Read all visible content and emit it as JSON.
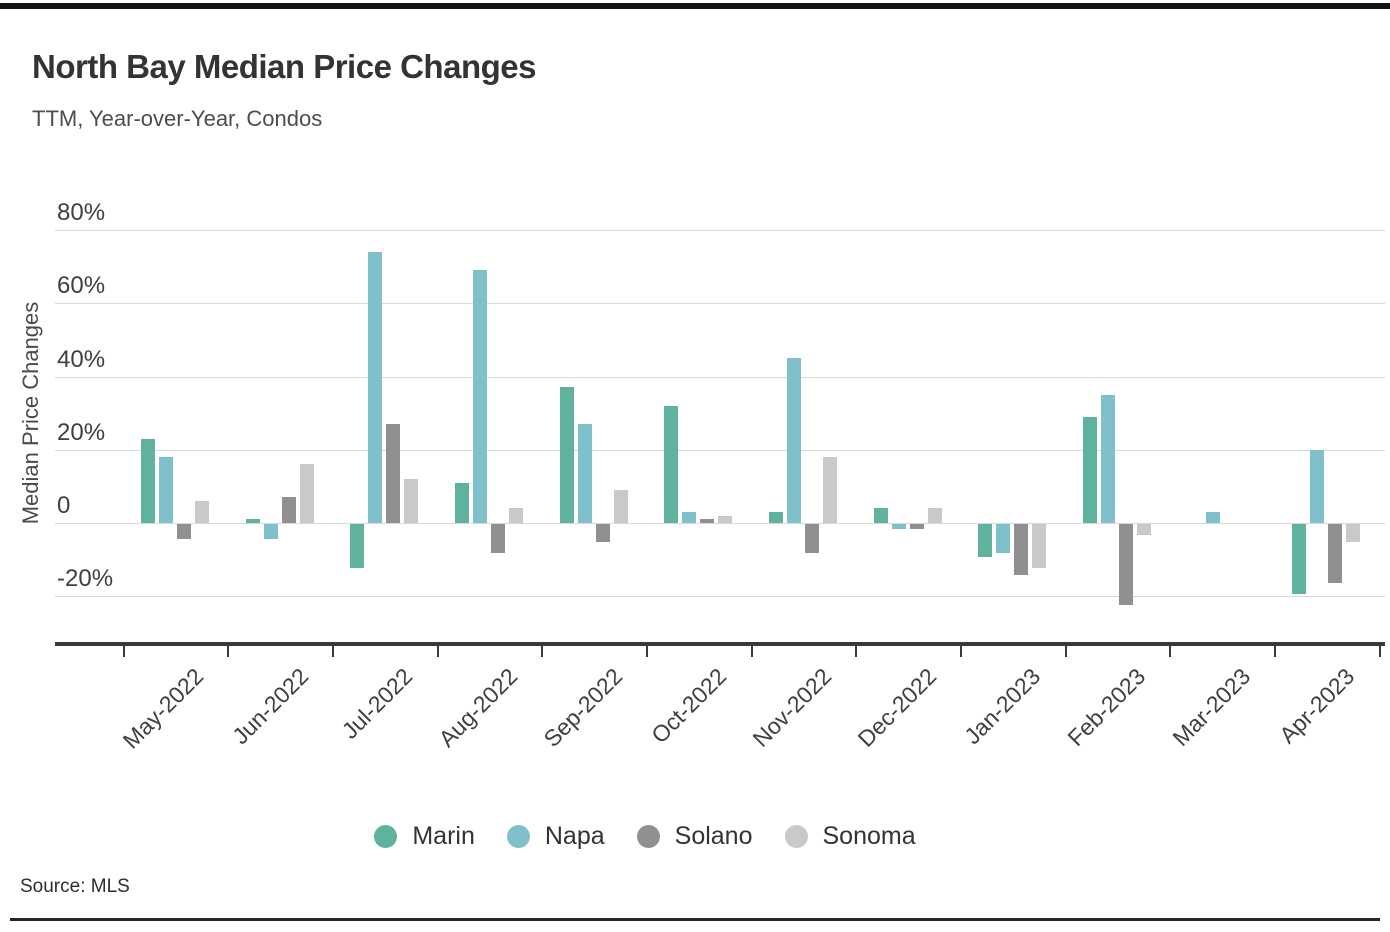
{
  "header": {
    "title": "North Bay Median Price Changes",
    "subtitle": "TTM, Year-over-Year, Condos"
  },
  "source": {
    "label": "Source: MLS"
  },
  "chart_data": {
    "type": "bar",
    "title": "North Bay Median Price Changes",
    "subtitle": "TTM, Year-over-Year, Condos",
    "ylabel": "Median Price Changes",
    "xlabel": "",
    "categories": [
      "May-2022",
      "Jun-2022",
      "Jul-2022",
      "Aug-2022",
      "Sep-2022",
      "Oct-2022",
      "Nov-2022",
      "Dec-2022",
      "Jan-2023",
      "Feb-2023",
      "Mar-2023",
      "Apr-2023"
    ],
    "series": [
      {
        "name": "Marin",
        "color": "#5fb39e",
        "values": [
          23,
          1,
          -12,
          11,
          37,
          32,
          3,
          4,
          -9,
          29,
          null,
          -19
        ]
      },
      {
        "name": "Napa",
        "color": "#7fc0cb",
        "values": [
          18,
          -4,
          74,
          69,
          27,
          3,
          45,
          -1.5,
          -8,
          35,
          3,
          20
        ]
      },
      {
        "name": "Solano",
        "color": "#909090",
        "values": [
          -4,
          7,
          27,
          -8,
          -5,
          1,
          -8,
          -1.5,
          -14,
          -22,
          null,
          -16
        ]
      },
      {
        "name": "Sonoma",
        "color": "#c9c9c9",
        "values": [
          6,
          16,
          12,
          4,
          9,
          2,
          18,
          4,
          -12,
          -3,
          null,
          -5
        ]
      }
    ],
    "yticks": [
      "80%",
      "60%",
      "40%",
      "20%",
      "0",
      "-20%"
    ],
    "ytick_values": [
      80,
      60,
      40,
      20,
      0,
      -20
    ],
    "ylim": [
      -25,
      85
    ],
    "grid": "horizontal",
    "legend_position": "bottom",
    "unit": "percent"
  }
}
